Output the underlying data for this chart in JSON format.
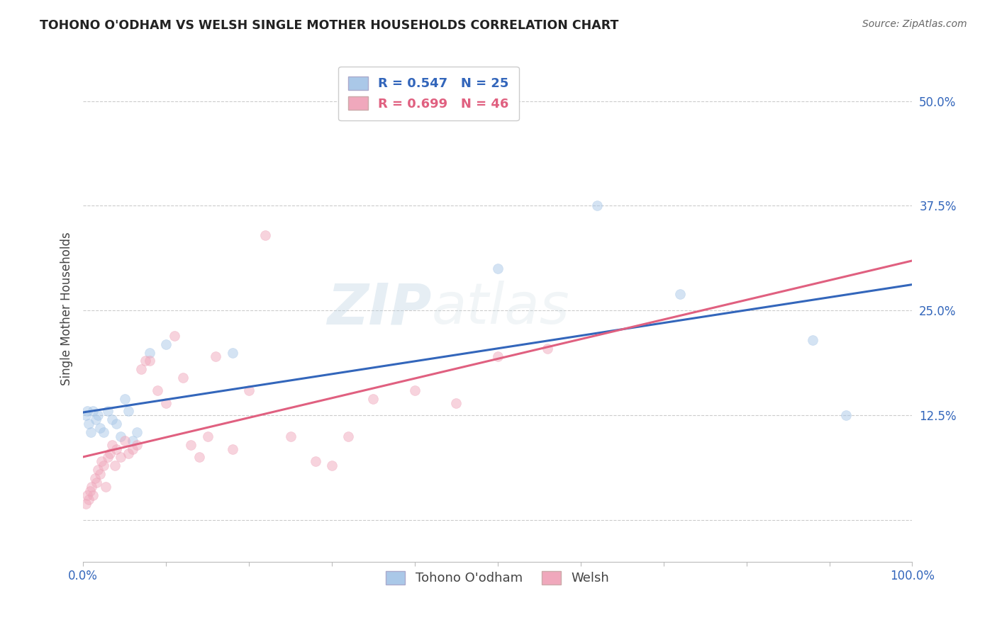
{
  "title": "TOHONO O'ODHAM VS WELSH SINGLE MOTHER HOUSEHOLDS CORRELATION CHART",
  "source": "Source: ZipAtlas.com",
  "ylabel": "Single Mother Households",
  "background_color": "#ffffff",
  "grid_color": "#cccccc",
  "xlim": [
    0.0,
    1.0
  ],
  "ylim": [
    -0.05,
    0.555
  ],
  "x_ticks": [
    0.0,
    0.1,
    0.2,
    0.3,
    0.4,
    0.5,
    0.6,
    0.7,
    0.8,
    0.9,
    1.0
  ],
  "x_tick_labels": [
    "0.0%",
    "",
    "",
    "",
    "",
    "",
    "",
    "",
    "",
    "",
    "100.0%"
  ],
  "y_ticks": [
    0.0,
    0.125,
    0.25,
    0.375,
    0.5
  ],
  "y_tick_labels": [
    "",
    "12.5%",
    "25.0%",
    "37.5%",
    "50.0%"
  ],
  "blue_scatter_color": "#aac8e8",
  "pink_scatter_color": "#f0a8bc",
  "blue_line_color": "#3366bb",
  "pink_line_color": "#e06080",
  "legend_text_blue": "R = 0.547   N = 25",
  "legend_text_pink": "R = 0.699   N = 46",
  "tohono_x": [
    0.003,
    0.005,
    0.007,
    0.009,
    0.012,
    0.015,
    0.018,
    0.02,
    0.025,
    0.03,
    0.035,
    0.04,
    0.045,
    0.05,
    0.055,
    0.06,
    0.065,
    0.08,
    0.1,
    0.18,
    0.5,
    0.62,
    0.72,
    0.88,
    0.92
  ],
  "tohono_y": [
    0.125,
    0.13,
    0.115,
    0.105,
    0.13,
    0.12,
    0.125,
    0.11,
    0.105,
    0.13,
    0.12,
    0.115,
    0.1,
    0.145,
    0.13,
    0.095,
    0.105,
    0.2,
    0.21,
    0.2,
    0.3,
    0.375,
    0.27,
    0.215,
    0.125
  ],
  "welsh_x": [
    0.003,
    0.005,
    0.007,
    0.008,
    0.01,
    0.012,
    0.014,
    0.016,
    0.018,
    0.02,
    0.022,
    0.025,
    0.027,
    0.03,
    0.032,
    0.035,
    0.038,
    0.04,
    0.045,
    0.05,
    0.055,
    0.06,
    0.065,
    0.07,
    0.075,
    0.08,
    0.09,
    0.1,
    0.11,
    0.12,
    0.13,
    0.14,
    0.15,
    0.16,
    0.18,
    0.2,
    0.22,
    0.25,
    0.28,
    0.3,
    0.32,
    0.35,
    0.4,
    0.45,
    0.5,
    0.56
  ],
  "welsh_y": [
    0.02,
    0.03,
    0.025,
    0.035,
    0.04,
    0.03,
    0.05,
    0.045,
    0.06,
    0.055,
    0.07,
    0.065,
    0.04,
    0.075,
    0.08,
    0.09,
    0.065,
    0.085,
    0.075,
    0.095,
    0.08,
    0.085,
    0.09,
    0.18,
    0.19,
    0.19,
    0.155,
    0.14,
    0.22,
    0.17,
    0.09,
    0.075,
    0.1,
    0.195,
    0.085,
    0.155,
    0.34,
    0.1,
    0.07,
    0.065,
    0.1,
    0.145,
    0.155,
    0.14,
    0.195,
    0.205
  ],
  "watermark_zip": "ZIP",
  "watermark_atlas": "atlas",
  "marker_size": 100,
  "marker_alpha": 0.5,
  "line_width": 2.2
}
